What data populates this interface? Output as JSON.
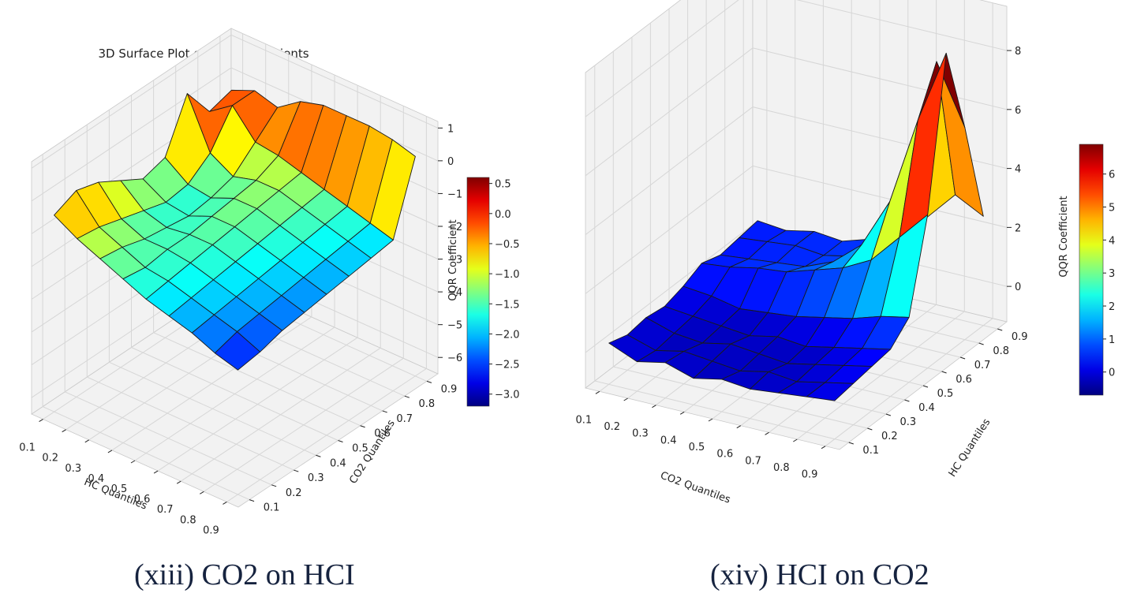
{
  "chart_data": [
    {
      "type": "surface3d",
      "title": "3D Surface Plot of QQR Coefficients",
      "caption": "(xiii) CO2 on HCI",
      "xlabel": "HC Quantiles",
      "ylabel": "CO2 Quantiles",
      "zlabel": "QQR Coefficient",
      "x": [
        0.1,
        0.2,
        0.3,
        0.4,
        0.5,
        0.6,
        0.7,
        0.8,
        0.9
      ],
      "y": [
        0.1,
        0.2,
        0.3,
        0.4,
        0.5,
        0.6,
        0.7,
        0.8,
        0.9
      ],
      "x_ticks": [
        "0.1",
        "0.2",
        "0.3",
        "0.4",
        "0.5",
        "0.6",
        "0.7",
        "0.8",
        "0.9"
      ],
      "y_ticks": [
        "0.1",
        "0.2",
        "0.3",
        "0.4",
        "0.5",
        "0.6",
        "0.7",
        "0.8",
        "0.9"
      ],
      "z_ticks": [
        "1",
        "0",
        "−1",
        "−2",
        "−3",
        "−4",
        "−5",
        "−6"
      ],
      "zlim": [
        -6.5,
        1.2
      ],
      "colorbar": {
        "colormap": "jet",
        "min": -3.2,
        "max": 0.6,
        "ticks": [
          "0.5",
          "0.0",
          "−0.5",
          "−1.0",
          "−1.5",
          "−2.0",
          "−2.5",
          "−3.0"
        ]
      },
      "z": [
        [
          -0.5,
          -0.9,
          -1.2,
          -1.5,
          -1.8,
          -2.0,
          -2.2,
          -2.5,
          -2.7
        ],
        [
          -0.2,
          -1.0,
          -1.3,
          -1.6,
          -1.7,
          -1.9,
          -2.1,
          -2.3,
          -2.6
        ],
        [
          -0.4,
          -1.2,
          -1.5,
          -1.5,
          -1.6,
          -1.8,
          -2.0,
          -2.2,
          -2.4
        ],
        [
          -0.8,
          -1.4,
          -1.6,
          -1.5,
          -1.5,
          -1.7,
          -1.9,
          -2.1,
          -2.3
        ],
        [
          -1.2,
          -1.6,
          -1.7,
          -1.4,
          -1.4,
          -1.6,
          -1.8,
          -2.0,
          -2.2
        ],
        [
          -1.0,
          -1.5,
          -1.6,
          -1.3,
          -1.3,
          -1.5,
          -1.7,
          -1.9,
          -2.1
        ],
        [
          0.5,
          -1.0,
          -1.4,
          -1.2,
          -1.2,
          -1.4,
          -1.6,
          -1.8,
          -2.0
        ],
        [
          -0.5,
          0.0,
          -0.8,
          -0.9,
          -1.1,
          -1.3,
          -1.5,
          -1.7,
          -1.9
        ],
        [
          -0.3,
          0.0,
          -0.2,
          0.3,
          0.5,
          0.5,
          0.5,
          0.4,
          0.2
        ]
      ]
    },
    {
      "type": "surface3d",
      "title": "3D Surface Plot of QQR Coefficients",
      "caption": "(xiv) HCI on CO2",
      "xlabel": "CO2 Quantiles",
      "ylabel": "HC Quantiles",
      "zlabel": "QQR Coefficient",
      "x": [
        0.1,
        0.2,
        0.3,
        0.4,
        0.5,
        0.6,
        0.7,
        0.8,
        0.9
      ],
      "y": [
        0.1,
        0.2,
        0.3,
        0.4,
        0.5,
        0.6,
        0.7,
        0.8,
        0.9
      ],
      "x_ticks": [
        "0.1",
        "0.2",
        "0.3",
        "0.4",
        "0.5",
        "0.6",
        "0.7",
        "0.8",
        "0.9"
      ],
      "y_ticks": [
        "0.1",
        "0.2",
        "0.3",
        "0.4",
        "0.5",
        "0.6",
        "0.7",
        "0.8",
        "0.9"
      ],
      "z_ticks": [
        "8",
        "6",
        "4",
        "2",
        "0"
      ],
      "zlim": [
        -1.2,
        9.5
      ],
      "colorbar": {
        "colormap": "jet",
        "min": -0.7,
        "max": 6.9,
        "ticks": [
          "6",
          "5",
          "4",
          "3",
          "2",
          "1",
          "0"
        ]
      },
      "z": [
        [
          0.2,
          -0.2,
          0.0,
          -0.3,
          -0.1,
          -0.2,
          -0.1,
          0.0,
          0.1
        ],
        [
          0.0,
          -0.3,
          -0.1,
          -0.2,
          -0.3,
          -0.1,
          -0.2,
          0.0,
          0.2
        ],
        [
          0.1,
          -0.2,
          -0.3,
          -0.1,
          -0.2,
          -0.3,
          -0.1,
          0.1,
          0.3
        ],
        [
          0.0,
          -0.1,
          -0.2,
          -0.3,
          -0.1,
          -0.2,
          0.0,
          0.2,
          0.4
        ],
        [
          0.2,
          0.1,
          -0.1,
          0.0,
          0.1,
          0.3,
          0.5,
          0.8,
          1.0
        ],
        [
          0.5,
          0.6,
          0.8,
          0.9,
          1.2,
          1.5,
          2.0,
          3.0,
          4.0
        ],
        [
          0.3,
          0.4,
          0.5,
          0.6,
          1.0,
          1.8,
          3.5,
          6.5,
          9.0
        ],
        [
          0.4,
          0.5,
          0.6,
          0.5,
          0.7,
          1.5,
          4.5,
          8.0,
          6.0
        ],
        [
          0.5,
          0.4,
          0.6,
          0.5,
          0.8,
          1.0,
          2.0,
          3.0,
          2.5
        ]
      ]
    }
  ]
}
